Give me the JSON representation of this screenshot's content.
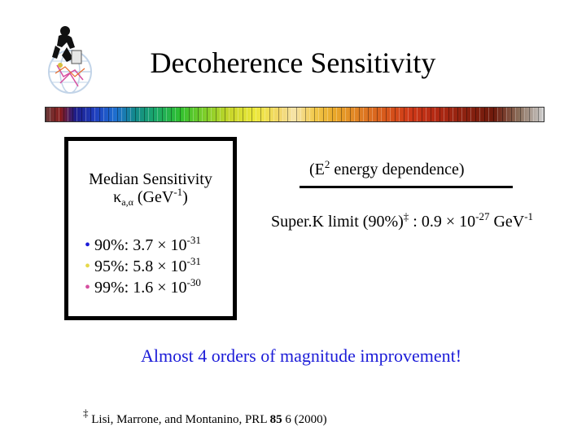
{
  "slide": {
    "title": "Decoherence Sensitivity"
  },
  "logo": {
    "icon": "globe-logo-icon"
  },
  "sensitivity_box": {
    "heading": "Median Sensitivity",
    "kappa": "κ",
    "kappa_sub": "a,α",
    "units_pre": "(GeV",
    "units_exp": "-1",
    "units_post": ")",
    "rows": [
      {
        "bullet": "•",
        "bullet_color": "#1c1cd8",
        "label": "90%: 3.7 × 10",
        "exponent": "-31"
      },
      {
        "bullet": "•",
        "bullet_color": "#e6d84a",
        "label": "95%: 5.8 × 10",
        "exponent": "-31"
      },
      {
        "bullet": "•",
        "bullet_color": "#d64fa0",
        "label": "99%: 1.6 × 10",
        "exponent": "-30"
      }
    ]
  },
  "energy": {
    "pre": "(E",
    "sup": "2",
    "post": " energy dependence)"
  },
  "superk": {
    "pre": "Super.K limit (90%)",
    "dagger": "‡",
    "mid": " : 0.9 × 10",
    "exp": "-27",
    "post": " GeV",
    "post_exp": "-1"
  },
  "headline": {
    "text": "Almost 4 orders of magnitude improvement!",
    "color": "#1c1cd8"
  },
  "footnote": {
    "mark": "‡",
    "text_pre": " Lisi, Marrone, and Montanino, PRL ",
    "volume": "85",
    "text_post": " 6 (2000)"
  }
}
